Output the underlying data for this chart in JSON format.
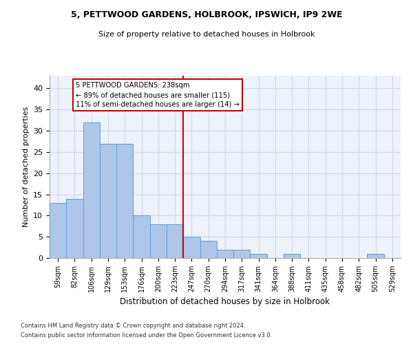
{
  "title1": "5, PETTWOOD GARDENS, HOLBROOK, IPSWICH, IP9 2WE",
  "title2": "Size of property relative to detached houses in Holbrook",
  "xlabel": "Distribution of detached houses by size in Holbrook",
  "ylabel": "Number of detached properties",
  "bar_labels": [
    "59sqm",
    "82sqm",
    "106sqm",
    "129sqm",
    "153sqm",
    "176sqm",
    "200sqm",
    "223sqm",
    "247sqm",
    "270sqm",
    "294sqm",
    "317sqm",
    "341sqm",
    "364sqm",
    "388sqm",
    "411sqm",
    "435sqm",
    "458sqm",
    "482sqm",
    "505sqm",
    "529sqm"
  ],
  "bar_values": [
    13,
    14,
    32,
    27,
    27,
    10,
    8,
    8,
    5,
    4,
    2,
    2,
    1,
    0,
    1,
    0,
    0,
    0,
    0,
    1,
    0
  ],
  "bar_color": "#aec6e8",
  "bar_edge_color": "#5a9fd4",
  "property_line_x": 8,
  "annotation_line1": "5 PETTWOOD GARDENS: 238sqm",
  "annotation_line2": "← 89% of detached houses are smaller (115)",
  "annotation_line3": "11% of semi-detached houses are larger (14) →",
  "annotation_box_color": "#ffffff",
  "annotation_box_edge": "#cc0000",
  "vline_color": "#cc0000",
  "grid_color": "#d0d8e8",
  "background_color": "#eef2fa",
  "ylim": [
    0,
    43
  ],
  "yticks": [
    0,
    5,
    10,
    15,
    20,
    25,
    30,
    35,
    40
  ],
  "footer1": "Contains HM Land Registry data © Crown copyright and database right 2024.",
  "footer2": "Contains public sector information licensed under the Open Government Licence v3.0."
}
